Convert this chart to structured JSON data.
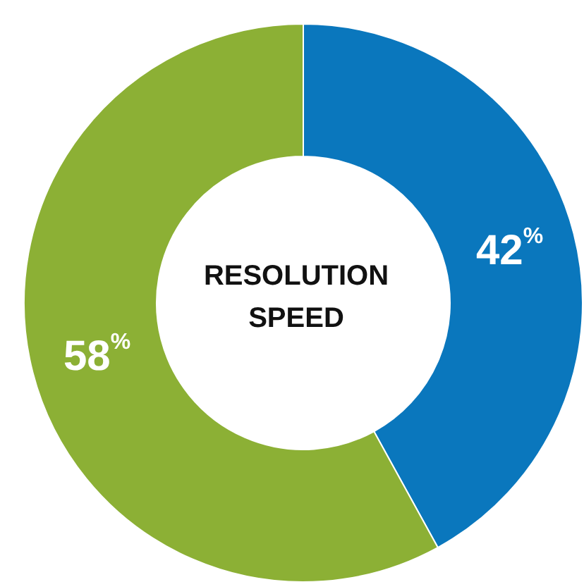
{
  "chart_data": {
    "type": "donut",
    "title": "RESOLUTION SPEED",
    "categories": [
      null,
      null
    ],
    "values": [
      42,
      58
    ],
    "colors": [
      "#0a77bd",
      "#8cb035"
    ],
    "value_labels": [
      "42$^{%}$",
      "58$^{%}$"
    ]
  }
}
